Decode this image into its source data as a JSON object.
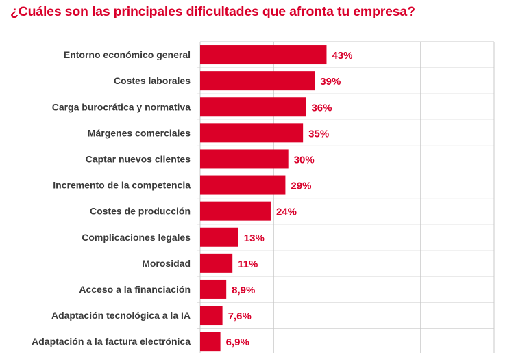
{
  "chart_data": {
    "type": "bar",
    "orientation": "horizontal",
    "title": "¿Cuáles son las principales dificultades que afronta tu empresa?",
    "categories": [
      "Entorno económico general",
      "Costes laborales",
      "Carga burocrática y normativa",
      "Márgenes comerciales",
      "Captar nuevos clientes",
      "Incremento de la competencia",
      "Costes de producción",
      "Complicaciones legales",
      "Morosidad",
      "Acceso a la financiación",
      "Adaptación tecnológica a la IA",
      "Adaptación a la factura electrónica"
    ],
    "values": [
      43,
      39,
      36,
      35,
      30,
      29,
      24,
      13,
      11,
      8.9,
      7.6,
      6.9
    ],
    "data_labels": [
      "43%",
      "39%",
      "36%",
      "35%",
      "30%",
      "29%",
      "24%",
      "13%",
      "11%",
      "8,9%",
      "7,6%",
      "6,9%"
    ],
    "xlim": [
      0,
      100
    ],
    "grid_values": [
      25,
      50,
      75,
      100
    ],
    "grid": true,
    "xlabel": "",
    "ylabel": "",
    "colors": {
      "bar": "#db0028",
      "title": "#d9002b",
      "label": "#3a3a3a",
      "grid": "#c8c8c8"
    }
  }
}
